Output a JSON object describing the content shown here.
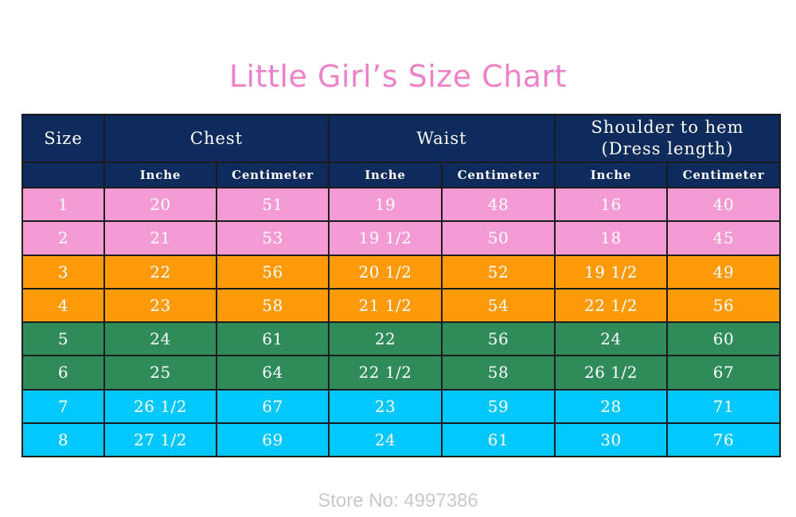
{
  "title": "Little Girl’s Size Chart",
  "store_label": "Store No: 4997386",
  "colors": {
    "title": "#ee82c8",
    "header": "#0f2b5b",
    "pink": "#f59bd3",
    "orange": "#ff9a0a",
    "green": "#2f8c5a",
    "cyan": "#00c8ff"
  },
  "chart_data": {
    "type": "table",
    "title": "Little Girl’s Size Chart",
    "header_groups": [
      {
        "label": "Size",
        "span": 1
      },
      {
        "label": "Chest",
        "span": 2
      },
      {
        "label": "Waist",
        "span": 2
      },
      {
        "label": [
          "Shoulder to hem",
          "(Dress length)"
        ],
        "span": 2
      }
    ],
    "sub_headers": [
      "",
      "Inche",
      "Centimeter",
      "Inche",
      "Centimeter",
      "Inche",
      "Centimeter"
    ],
    "rows": [
      {
        "color": "pink",
        "cells": [
          "1",
          "20",
          "51",
          "19",
          "48",
          "16",
          "40"
        ]
      },
      {
        "color": "pink",
        "cells": [
          "2",
          "21",
          "53",
          "19 1/2",
          "50",
          "18",
          "45"
        ]
      },
      {
        "color": "orange",
        "cells": [
          "3",
          "22",
          "56",
          "20 1/2",
          "52",
          "19 1/2",
          "49"
        ]
      },
      {
        "color": "orange",
        "cells": [
          "4",
          "23",
          "58",
          "21 1/2",
          "54",
          "22 1/2",
          "56"
        ]
      },
      {
        "color": "green",
        "cells": [
          "5",
          "24",
          "61",
          "22",
          "56",
          "24",
          "60"
        ]
      },
      {
        "color": "green",
        "cells": [
          "6",
          "25",
          "64",
          "22 1/2",
          "58",
          "26 1/2",
          "67"
        ]
      },
      {
        "color": "cyan",
        "cells": [
          "7",
          "26 1/2",
          "67",
          "23",
          "59",
          "28",
          "71"
        ]
      },
      {
        "color": "cyan",
        "cells": [
          "8",
          "27 1/2",
          "69",
          "24",
          "61",
          "30",
          "76"
        ]
      }
    ]
  }
}
